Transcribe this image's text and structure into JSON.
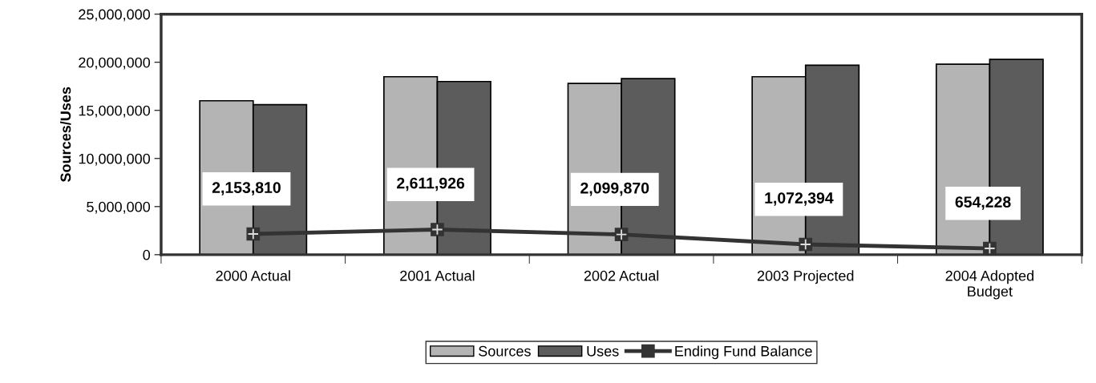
{
  "chart_data": {
    "type": "bar",
    "ylabel": "Sources/Uses",
    "categories": [
      "2000 Actual",
      "2001 Actual",
      "2002 Actual",
      "2003 Projected",
      "2004 Adopted\nBudget"
    ],
    "series": [
      {
        "name": "Sources",
        "color": "#b4b4b4",
        "values": [
          16000000,
          18500000,
          17800000,
          18500000,
          19800000
        ]
      },
      {
        "name": "Uses",
        "color": "#5c5c5c",
        "values": [
          15600000,
          18000000,
          18300000,
          19700000,
          20300000
        ]
      },
      {
        "name": "Ending Fund Balance",
        "type": "line",
        "color": "#333333",
        "marker": "square",
        "values": [
          2153810,
          2611926,
          2099870,
          1072394,
          654228
        ],
        "value_labels": [
          "2,153,810",
          "2,611,926",
          "2,099,870",
          "1,072,394",
          "654,228"
        ]
      }
    ],
    "ylim": [
      0,
      25000000
    ],
    "yticks": [
      {
        "value": 0,
        "label": "0"
      },
      {
        "value": 5000000,
        "label": "5,000,000"
      },
      {
        "value": 10000000,
        "label": "10,000,000"
      },
      {
        "value": 15000000,
        "label": "15,000,000"
      },
      {
        "value": 20000000,
        "label": "20,000,000"
      },
      {
        "value": 25000000,
        "label": "25,000,000"
      }
    ],
    "grid": false,
    "legend": "bottom"
  }
}
